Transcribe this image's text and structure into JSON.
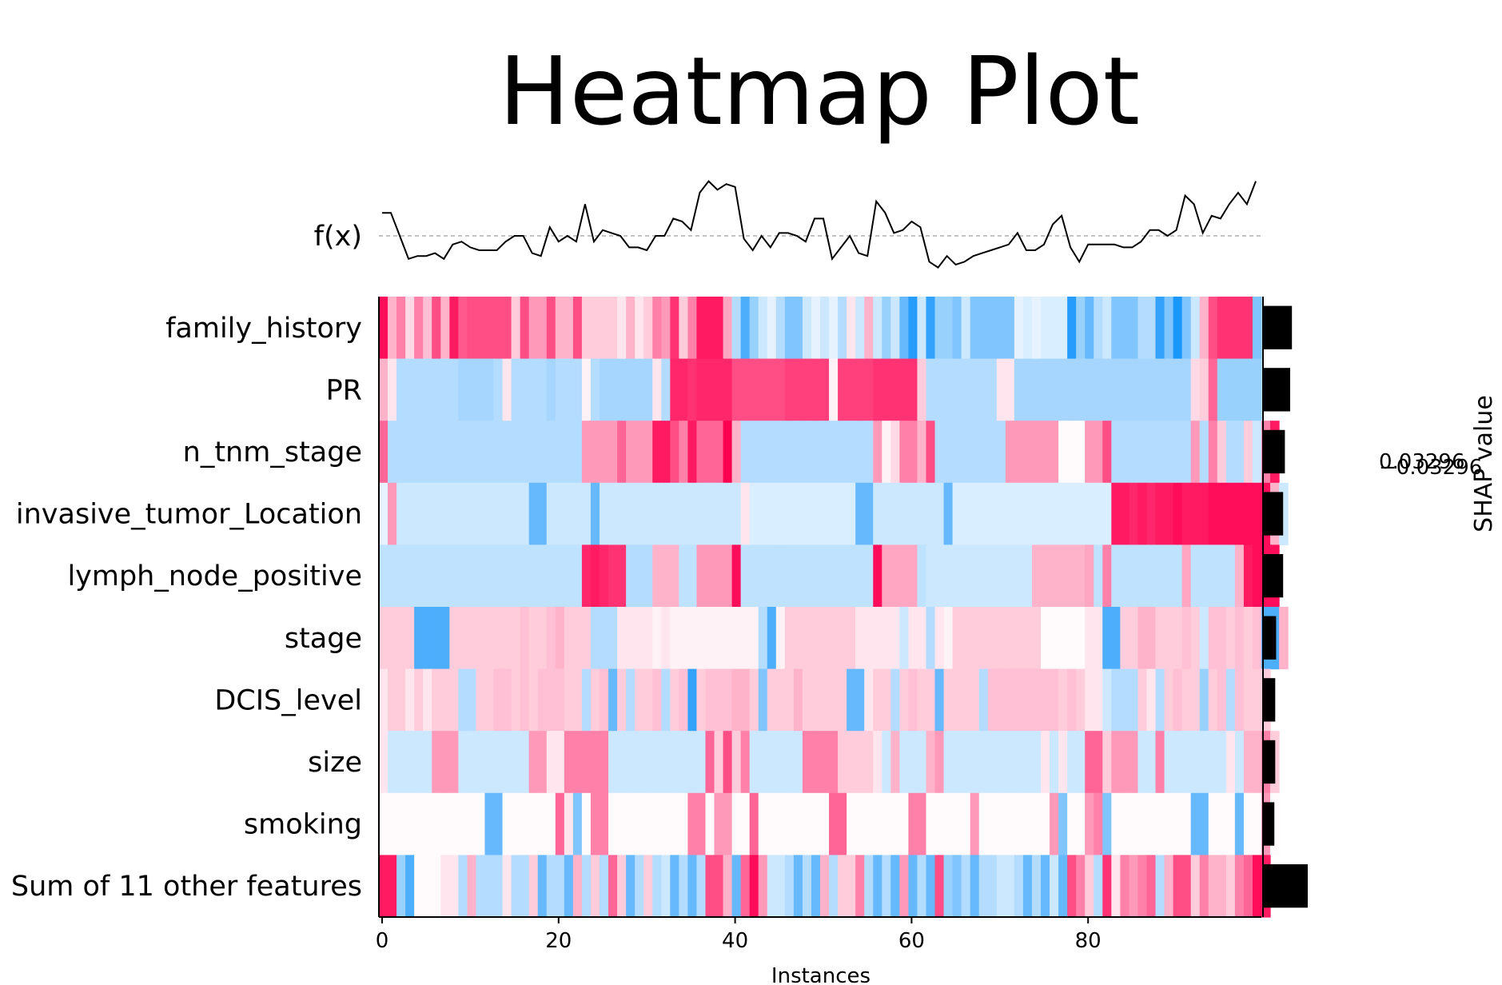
{
  "chart_data": {
    "type": "heatmap",
    "title": "Heatmap Plot",
    "fx_label": "f(x)",
    "xlabel": "Instances",
    "colorbar_label": "SHAP value",
    "colorbar_ticks": [
      "0.03296",
      "−0.03296"
    ],
    "n_instances": 100,
    "xlim": [
      0,
      100
    ],
    "xticks": [
      0,
      20,
      40,
      60,
      80
    ],
    "colors": {
      "positive": "#ff0051",
      "negative": "#008bfb",
      "neutral": "#ffffff",
      "bar": "#000000",
      "line": "#000000",
      "baseline": "#b0b0b0"
    },
    "features": [
      "family_history",
      "PR",
      "n_tnm_stage",
      "invasive_tumor_Location",
      "lymph_node_positive",
      "stage",
      "DCIS_level",
      "size",
      "smoking",
      "Sum of 11 other features"
    ],
    "mean_abs_shap": [
      0.32,
      0.3,
      0.24,
      0.22,
      0.22,
      0.14,
      0.13,
      0.13,
      0.12,
      0.5
    ],
    "fx_baseline": 0,
    "fx": [
      0.8,
      0.8,
      0,
      -0.8,
      -0.7,
      -0.7,
      -0.6,
      -0.8,
      -0.3,
      -0.2,
      -0.4,
      -0.5,
      -0.5,
      -0.5,
      -0.2,
      0,
      0,
      -0.6,
      -0.7,
      0.3,
      -0.2,
      0,
      -0.2,
      1.1,
      -0.2,
      0.2,
      0.1,
      0,
      -0.4,
      -0.4,
      -0.5,
      0,
      0,
      0.6,
      0.5,
      0.2,
      1.5,
      1.9,
      1.6,
      1.8,
      1.7,
      -0.1,
      -0.5,
      0,
      -0.4,
      0.1,
      0.1,
      0,
      -0.2,
      0.6,
      0.6,
      -0.8,
      -0.4,
      0,
      -0.6,
      -0.7,
      1.2,
      0.8,
      0.1,
      0.2,
      0.5,
      0.3,
      -0.9,
      -1.1,
      -0.7,
      -1,
      -0.9,
      -0.7,
      -0.6,
      -0.5,
      -0.4,
      -0.3,
      0.1,
      -0.5,
      -0.5,
      -0.3,
      0.4,
      0.7,
      -0.4,
      -0.9,
      -0.3,
      -0.3,
      -0.3,
      -0.3,
      -0.4,
      -0.4,
      -0.2,
      0.2,
      0.2,
      0,
      0.2,
      1.4,
      1.1,
      0.1,
      0.7,
      0.6,
      1.1,
      1.5,
      1.1,
      1.9
    ],
    "shap_values": [
      [
        0.95,
        0.3,
        0.5,
        0.15,
        0.5,
        0.25,
        0.7,
        0.3,
        0.9,
        0.65,
        0.7,
        0.7,
        0.7,
        0.7,
        0.7,
        0.2,
        0.7,
        0.4,
        0.4,
        0.7,
        0.3,
        0.3,
        0.7,
        0.2,
        0.2,
        0.2,
        0.2,
        0.1,
        0.3,
        0.1,
        0.2,
        0.5,
        0.4,
        0.8,
        0.2,
        0.5,
        0.9,
        0.9,
        0.9,
        0.35,
        -0.3,
        -0.7,
        -0.4,
        -0.2,
        -0.1,
        -0.3,
        -0.5,
        -0.5,
        -0.2,
        -0.1,
        -0.2,
        -0.1,
        -0.3,
        0.1,
        -0.2,
        0.3,
        -0.2,
        -0.4,
        -0.2,
        -0.6,
        -0.85,
        -0.2,
        -0.8,
        -0.4,
        -0.4,
        -0.5,
        -0.2,
        -0.5,
        -0.5,
        -0.5,
        -0.5,
        -0.5,
        -0.1,
        -0.15,
        -0.1,
        -0.15,
        -0.15,
        -0.15,
        -0.85,
        -0.4,
        -0.6,
        -0.3,
        -0.2,
        -0.5,
        -0.5,
        -0.5,
        -0.3,
        -0.3,
        -0.8,
        -0.5,
        -0.9,
        -0.5,
        -0.2,
        0.3,
        0.7,
        0.8,
        0.8,
        0.8,
        0.8,
        -0.5
      ],
      [
        0.3,
        0.1,
        -0.3,
        -0.3,
        -0.3,
        -0.3,
        -0.3,
        -0.3,
        -0.3,
        -0.35,
        -0.35,
        -0.35,
        -0.35,
        -0.3,
        0.1,
        -0.3,
        -0.3,
        -0.3,
        -0.3,
        -0.35,
        -0.3,
        -0.3,
        -0.3,
        0.05,
        -0.3,
        -0.35,
        -0.35,
        -0.35,
        -0.35,
        -0.35,
        -0.35,
        0.1,
        -0.3,
        0.85,
        0.85,
        0.8,
        0.85,
        0.85,
        0.85,
        0.85,
        0.7,
        0.7,
        0.7,
        0.7,
        0.7,
        0.7,
        0.75,
        0.75,
        0.75,
        0.75,
        0.75,
        0.05,
        0.75,
        0.75,
        0.75,
        0.75,
        0.8,
        0.8,
        0.8,
        0.8,
        0.8,
        0.2,
        -0.3,
        -0.3,
        -0.3,
        -0.3,
        -0.3,
        -0.3,
        -0.3,
        -0.3,
        0.1,
        0.1,
        -0.35,
        -0.35,
        -0.35,
        -0.35,
        -0.35,
        -0.35,
        -0.35,
        -0.35,
        -0.35,
        -0.35,
        -0.35,
        -0.35,
        -0.35,
        -0.35,
        -0.35,
        -0.35,
        -0.35,
        -0.35,
        -0.35,
        -0.35,
        0.15,
        0.2,
        0.6,
        -0.4,
        -0.4,
        -0.4,
        -0.4,
        -0.4
      ],
      [
        0.6,
        -0.3,
        -0.3,
        -0.3,
        -0.3,
        -0.3,
        -0.3,
        -0.3,
        -0.3,
        -0.3,
        -0.3,
        -0.3,
        -0.3,
        -0.3,
        -0.3,
        -0.3,
        -0.3,
        -0.3,
        -0.3,
        -0.3,
        -0.3,
        -0.3,
        -0.3,
        0.4,
        0.4,
        0.4,
        0.4,
        0.6,
        0.4,
        0.4,
        0.4,
        0.9,
        0.9,
        0.7,
        0.5,
        0.9,
        0.6,
        0.6,
        0.6,
        1,
        0.3,
        -0.3,
        -0.3,
        -0.3,
        -0.3,
        -0.3,
        -0.3,
        -0.3,
        -0.3,
        -0.3,
        -0.3,
        -0.3,
        -0.3,
        -0.3,
        -0.3,
        -0.3,
        0.4,
        0.05,
        0.15,
        0.5,
        0.5,
        0.3,
        0.7,
        -0.3,
        -0.3,
        -0.3,
        -0.3,
        -0.3,
        -0.3,
        -0.3,
        -0.3,
        0.4,
        0.4,
        0.4,
        0.4,
        0.4,
        0.4,
        0.02,
        0.02,
        0.02,
        0.4,
        0.4,
        0.7,
        -0.3,
        -0.3,
        -0.3,
        -0.3,
        -0.3,
        -0.3,
        -0.3,
        -0.3,
        -0.3,
        0.4,
        -0.3,
        0.5,
        0.2,
        -0.3,
        -0.3,
        0.2,
        -0.2,
        0.5,
        0.9
      ],
      [
        -0.1,
        0.4,
        -0.2,
        -0.2,
        -0.2,
        -0.2,
        -0.2,
        -0.2,
        -0.2,
        -0.2,
        -0.2,
        -0.2,
        -0.2,
        -0.2,
        -0.2,
        -0.2,
        -0.2,
        -0.6,
        -0.6,
        -0.2,
        -0.2,
        -0.2,
        -0.2,
        -0.2,
        -0.6,
        -0.2,
        -0.2,
        -0.2,
        -0.2,
        -0.2,
        -0.2,
        -0.2,
        -0.2,
        -0.2,
        -0.2,
        -0.2,
        -0.2,
        -0.2,
        -0.2,
        -0.2,
        -0.2,
        0.1,
        -0.15,
        -0.15,
        -0.15,
        -0.15,
        -0.15,
        -0.15,
        -0.15,
        -0.15,
        -0.15,
        -0.15,
        -0.15,
        -0.15,
        -0.6,
        -0.6,
        -0.2,
        -0.2,
        -0.2,
        -0.2,
        -0.2,
        -0.2,
        -0.2,
        -0.2,
        -0.6,
        -0.15,
        -0.15,
        -0.15,
        -0.15,
        -0.15,
        -0.15,
        -0.15,
        -0.15,
        -0.15,
        -0.15,
        -0.15,
        -0.15,
        -0.15,
        -0.15,
        -0.15,
        -0.15,
        -0.15,
        -0.15,
        0.9,
        0.9,
        0.85,
        0.9,
        0.85,
        0.9,
        0.9,
        0.95,
        0.9,
        0.9,
        0.9,
        0.95,
        0.95,
        0.95,
        0.95,
        0.95,
        0.95,
        0.95,
        0.3,
        -0.2
      ],
      [
        -0.25,
        -0.25,
        -0.25,
        -0.25,
        -0.25,
        -0.25,
        -0.25,
        -0.25,
        -0.25,
        -0.25,
        -0.25,
        -0.25,
        -0.25,
        -0.25,
        -0.25,
        -0.25,
        -0.25,
        -0.25,
        -0.25,
        -0.25,
        -0.25,
        -0.25,
        -0.25,
        0.85,
        0.9,
        0.85,
        0.8,
        0.8,
        -0.3,
        -0.3,
        -0.3,
        0.3,
        0.3,
        0.3,
        -0.25,
        -0.25,
        0.4,
        0.4,
        0.4,
        0.4,
        0.95,
        -0.25,
        -0.25,
        -0.25,
        -0.25,
        -0.25,
        -0.25,
        -0.25,
        -0.25,
        -0.25,
        -0.25,
        -0.25,
        -0.25,
        -0.25,
        -0.25,
        -0.25,
        0.95,
        0.35,
        0.35,
        0.35,
        0.35,
        -0.25,
        -0.2,
        -0.2,
        -0.2,
        -0.2,
        -0.2,
        -0.2,
        -0.2,
        -0.2,
        -0.2,
        -0.2,
        -0.2,
        -0.2,
        0.3,
        0.3,
        0.3,
        0.3,
        0.3,
        0.3,
        0.35,
        -0.25,
        0.5,
        -0.25,
        -0.25,
        -0.25,
        -0.25,
        -0.25,
        -0.25,
        -0.25,
        -0.25,
        0.35,
        -0.25,
        -0.25,
        -0.25,
        -0.25,
        -0.25,
        0.3,
        0.9,
        0.95,
        0.95,
        0.95
      ],
      [
        0.2,
        0.2,
        0.2,
        0.2,
        -0.7,
        -0.7,
        -0.7,
        -0.7,
        0.2,
        0.2,
        0.2,
        0.2,
        0.2,
        0.2,
        0.2,
        0.2,
        0.25,
        0.2,
        0.2,
        0.25,
        0.3,
        0.2,
        0.2,
        0.2,
        -0.3,
        -0.3,
        -0.3,
        0.1,
        0.1,
        0.1,
        0.1,
        0.05,
        0.1,
        0.05,
        0.05,
        0.05,
        0.05,
        0.05,
        0.05,
        0.05,
        0.05,
        0.05,
        0.05,
        -0.3,
        -0.7,
        0.05,
        0.2,
        0.2,
        0.2,
        0.2,
        0.2,
        0.2,
        0.2,
        0.2,
        0.1,
        0.1,
        0.1,
        0.1,
        0.1,
        -0.2,
        0.1,
        0.1,
        -0.3,
        0.1,
        0.05,
        0.2,
        0.2,
        0.2,
        0.2,
        0.2,
        0.2,
        0.2,
        0.2,
        0.2,
        0.2,
        0.02,
        0.02,
        0.02,
        0.02,
        0.02,
        0.1,
        0.1,
        -0.7,
        -0.7,
        0.2,
        0.2,
        0.3,
        0.3,
        0.2,
        0.2,
        0.2,
        0.25,
        0.2,
        -0.2,
        0.25,
        0.25,
        0.2,
        0.25,
        0.2,
        0.25,
        -0.7,
        -0.7,
        0.3
      ],
      [
        0.1,
        0.2,
        0.2,
        0.1,
        0.2,
        0.1,
        0.2,
        0.2,
        0.2,
        -0.3,
        -0.3,
        0.2,
        0.2,
        0.25,
        0.25,
        0.2,
        0.25,
        0.2,
        0.25,
        0.25,
        0.25,
        0.2,
        0.2,
        -0.3,
        0.2,
        0.25,
        -0.6,
        0.2,
        -0.3,
        0.2,
        0.2,
        0.25,
        -0.3,
        0.2,
        0.25,
        -0.8,
        0.2,
        0.25,
        0.25,
        0.25,
        0.3,
        0.3,
        0.2,
        -0.5,
        0.2,
        0.2,
        0.2,
        0.3,
        0.2,
        0.2,
        0.2,
        0.2,
        0.2,
        -0.6,
        -0.6,
        0.1,
        0.2,
        0.2,
        -0.3,
        0.2,
        0.25,
        0.2,
        0.2,
        -0.6,
        0.2,
        0.2,
        0.2,
        0.2,
        -0.3,
        0.25,
        0.25,
        0.25,
        0.25,
        0.25,
        0.25,
        0.25,
        0.25,
        0.2,
        0.25,
        0.2,
        0.1,
        0.1,
        -0.2,
        -0.3,
        -0.3,
        -0.3,
        0.2,
        0.1,
        -0.3,
        0.2,
        0.25,
        0.2,
        0.2,
        -0.4,
        0.2,
        0.25,
        -0.3,
        0.25,
        0.2,
        0.2,
        0.2
      ],
      [
        0.1,
        -0.2,
        -0.2,
        -0.2,
        -0.2,
        -0.2,
        0.4,
        0.4,
        0.4,
        -0.2,
        -0.2,
        -0.2,
        -0.2,
        -0.2,
        -0.2,
        -0.2,
        -0.2,
        0.4,
        0.4,
        0.1,
        0.1,
        0.5,
        0.5,
        0.5,
        0.5,
        0.5,
        -0.2,
        -0.2,
        -0.2,
        -0.2,
        -0.2,
        -0.2,
        -0.2,
        -0.2,
        -0.2,
        -0.2,
        -0.2,
        0.6,
        0.2,
        0.7,
        0.2,
        0.5,
        -0.2,
        -0.2,
        -0.2,
        -0.2,
        -0.2,
        -0.2,
        0.5,
        0.5,
        0.5,
        0.5,
        0.2,
        0.2,
        0.2,
        0.2,
        0.1,
        -0.2,
        0.3,
        -0.2,
        -0.2,
        -0.2,
        0.3,
        0.4,
        -0.2,
        -0.2,
        -0.2,
        -0.2,
        -0.2,
        -0.2,
        -0.2,
        -0.2,
        -0.2,
        -0.2,
        -0.2,
        0.1,
        -0.2,
        0.1,
        -0.2,
        -0.2,
        0.6,
        0.6,
        0.2,
        0.4,
        0.4,
        0.4,
        -0.2,
        -0.2,
        0.5,
        -0.2,
        -0.2,
        -0.2,
        -0.2,
        -0.2,
        -0.2,
        -0.2,
        0.1,
        -0.2,
        0.3,
        0.3,
        0.5,
        0.2
      ],
      [
        0.02,
        0.02,
        0.02,
        0.02,
        0.02,
        0.02,
        0.02,
        0.02,
        0.02,
        0.02,
        0.02,
        0.02,
        -0.6,
        -0.6,
        0.02,
        0.02,
        0.02,
        0.02,
        0.02,
        0.02,
        0.6,
        0.1,
        -0.5,
        0.02,
        0.5,
        0.5,
        0.02,
        0.02,
        0.02,
        0.02,
        0.02,
        0.02,
        0.02,
        0.02,
        0.02,
        0.5,
        0.5,
        0.02,
        0.4,
        0.4,
        0.02,
        0.02,
        0.6,
        0.02,
        0.02,
        0.02,
        0.02,
        0.02,
        0.02,
        0.02,
        0.02,
        0.6,
        0.6,
        0.02,
        0.02,
        0.02,
        0.02,
        0.02,
        0.02,
        0.02,
        0.5,
        0.5,
        0.02,
        0.02,
        0.02,
        0.02,
        0.02,
        0.4,
        0.02,
        0.02,
        0.02,
        0.02,
        0.02,
        0.02,
        0.02,
        0.02,
        0.4,
        -0.5,
        0.02,
        0.02,
        0.4,
        0.5,
        -0.5,
        0.02,
        0.02,
        0.02,
        0.02,
        0.02,
        0.02,
        0.02,
        0.02,
        0.02,
        -0.6,
        -0.6,
        0.02,
        0.02,
        0.02,
        -0.6,
        0.02,
        0.02,
        0.4,
        0.02
      ],
      [
        0.9,
        0.9,
        -0.4,
        -0.7,
        0.02,
        0.02,
        0.02,
        0.1,
        0.1,
        -0.3,
        0.3,
        -0.3,
        -0.3,
        -0.3,
        0.1,
        -0.3,
        -0.3,
        0.2,
        -0.6,
        -0.3,
        -0.3,
        -0.6,
        0.3,
        -0.3,
        0.2,
        -0.3,
        0.6,
        0.2,
        -0.6,
        -0.3,
        0.2,
        -0.3,
        -0.2,
        -0.6,
        -0.3,
        -0.6,
        -0.3,
        0.7,
        0.7,
        0.3,
        -0.6,
        0.6,
        0.95,
        0.4,
        -0.2,
        -0.2,
        -0.3,
        -0.6,
        -0.3,
        -0.6,
        0.3,
        -0.3,
        0.2,
        0.2,
        0.5,
        -0.3,
        -0.6,
        -0.3,
        -0.6,
        0.4,
        -0.6,
        -0.3,
        -0.6,
        0.7,
        -0.4,
        -0.5,
        -0.3,
        -0.6,
        -0.3,
        -0.3,
        -0.2,
        -0.2,
        -0.3,
        -0.6,
        -0.3,
        -0.6,
        -0.2,
        -0.6,
        0.7,
        0.5,
        0.2,
        -0.3,
        0.8,
        0.1,
        0.5,
        0.4,
        0.5,
        0.6,
        -0.3,
        0.3,
        0.7,
        0.7,
        0.2,
        0.5,
        0.3,
        0.3,
        0.2,
        0.5,
        0.6,
        0.95,
        0.9
      ]
    ]
  }
}
